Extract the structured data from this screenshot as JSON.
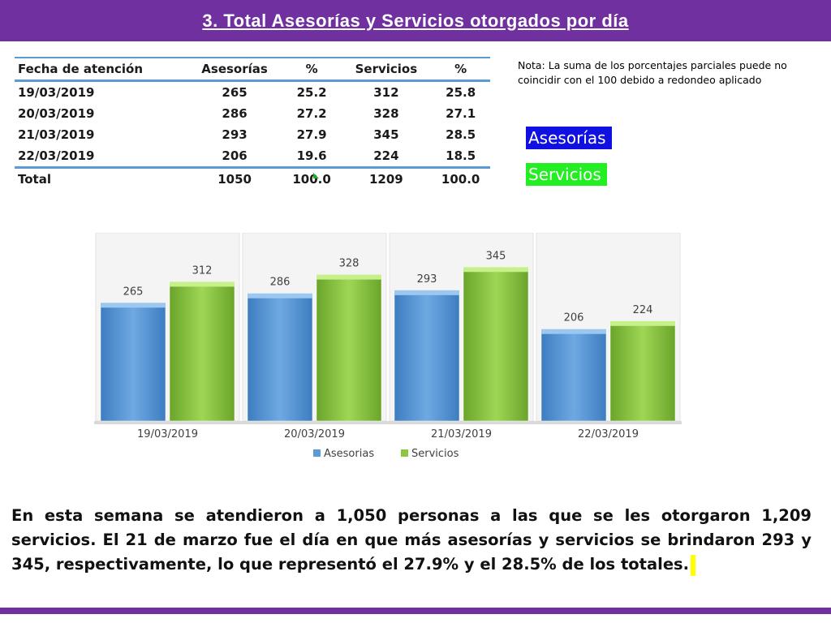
{
  "header": {
    "title": "3.  Total Asesorías y Servicios otorgados por día",
    "bar_color": "#7030a0"
  },
  "table": {
    "columns": [
      "Fecha de atención",
      "Asesorías",
      "%",
      "Servicios",
      "%"
    ],
    "rows": [
      [
        "19/03/2019",
        "265",
        "25.2",
        "312",
        "25.8"
      ],
      [
        "20/03/2019",
        "286",
        "27.2",
        "328",
        "27.1"
      ],
      [
        "21/03/2019",
        "293",
        "27.9",
        "345",
        "28.5"
      ],
      [
        "22/03/2019",
        "206",
        "19.6",
        "224",
        "18.5"
      ]
    ],
    "total": [
      "Total",
      "1050",
      "100.0",
      "1209",
      "100.0"
    ]
  },
  "note": "Nota: La suma de los porcentajes parciales puede no coincidir con el 100 debido a redondeo aplicado",
  "legend_boxes": {
    "asesorias": {
      "label": "Asesorías",
      "color": "#1010e0"
    },
    "servicios": {
      "label": "Servicios",
      "color": "#22ee22"
    }
  },
  "chart_data": {
    "type": "bar",
    "categories": [
      "19/03/2019",
      "20/03/2019",
      "21/03/2019",
      "22/03/2019"
    ],
    "series": [
      {
        "name": "Asesorias",
        "values": [
          265,
          286,
          293,
          206
        ],
        "color": "#5b9bd5"
      },
      {
        "name": "Servicios",
        "values": [
          312,
          328,
          345,
          224
        ],
        "color": "#8dc63f"
      }
    ],
    "ylim": [
      0,
      400
    ],
    "grid": false,
    "legend": "bottom"
  },
  "paragraph": "En esta semana se atendieron a 1,050 personas a las que se les otorgaron 1,209 servicios. El 21 de marzo fue el día en que más asesorías y servicios se brindaron 293 y 345, respectivamente, lo que representó  el 27.9% y el 28.5% de los totales."
}
